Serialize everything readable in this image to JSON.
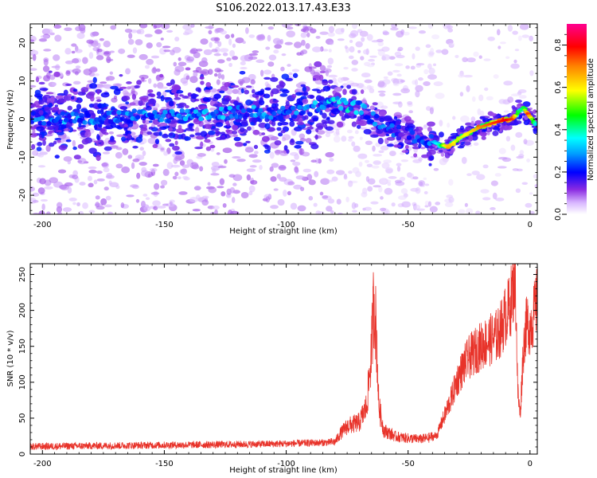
{
  "figure_title": "S106.2022.013.17.43.E33",
  "chart_data": [
    {
      "type": "heatmap",
      "title": "S106.2022.013.17.43.E33",
      "xlabel": "Height of straight line (km)",
      "ylabel": "Frequency (Hz)",
      "xlim": [
        -205,
        3
      ],
      "ylim": [
        -25,
        25
      ],
      "x_ticks": [
        -200,
        -150,
        -100,
        -50,
        0
      ],
      "y_ticks": [
        -20,
        -10,
        0,
        10,
        20
      ],
      "grid": false,
      "colorbar": {
        "label": "Normalized spectral amplitude",
        "range": [
          0,
          0.9
        ],
        "ticks": [
          0.0,
          0.2,
          0.4,
          0.6,
          0.8
        ],
        "colors": [
          "#ffffff",
          "#c8a0ff",
          "#7a00ff",
          "#0000ff",
          "#00ffff",
          "#00ff00",
          "#ffff00",
          "#ff8000",
          "#ff0000",
          "#ff00a0"
        ]
      },
      "ridge": {
        "x": [
          -205,
          -190,
          -175,
          -160,
          -145,
          -130,
          -115,
          -100,
          -90,
          -82,
          -78,
          -70,
          -65,
          -60,
          -55,
          -50,
          -45,
          -40,
          -37,
          -35,
          -33,
          -30,
          -25,
          -20,
          -15,
          -10,
          -7,
          -5,
          -3,
          -1,
          0,
          3
        ],
        "y": [
          0.3,
          0.4,
          0.2,
          0.8,
          1.0,
          1.5,
          1.8,
          1.5,
          2.5,
          4.5,
          4.0,
          3.0,
          0.5,
          -2.0,
          -3.0,
          -4.0,
          -5.0,
          -6.0,
          -6.8,
          -7.0,
          -7.0,
          -5.5,
          -3.5,
          -2.0,
          -1.0,
          -0.2,
          0.0,
          1.5,
          3.0,
          1.5,
          0.5,
          -1.5
        ],
        "amplitude": [
          0.25,
          0.3,
          0.28,
          0.3,
          0.3,
          0.32,
          0.3,
          0.28,
          0.3,
          0.35,
          0.38,
          0.35,
          0.3,
          0.28,
          0.25,
          0.2,
          0.25,
          0.3,
          0.4,
          0.6,
          0.65,
          0.55,
          0.6,
          0.7,
          0.75,
          0.8,
          0.75,
          0.45,
          0.4,
          0.75,
          0.6,
          0.3
        ]
      }
    },
    {
      "type": "line",
      "xlabel": "Height of straight line (km)",
      "ylabel": "SNR (10 * v/v)",
      "xlim": [
        -205,
        3
      ],
      "ylim": [
        0,
        265
      ],
      "x_ticks": [
        -200,
        -150,
        -100,
        -50,
        0
      ],
      "y_ticks": [
        0,
        50,
        100,
        150,
        200,
        250
      ],
      "grid": false,
      "color": "#e8332a",
      "profile": {
        "x": [
          -205,
          -180,
          -150,
          -120,
          -100,
          -90,
          -80,
          -78,
          -75,
          -72,
          -70,
          -67,
          -65,
          -64,
          -63,
          -62,
          -60,
          -55,
          -50,
          -45,
          -42,
          -40,
          -38,
          -37,
          -35,
          -32,
          -30,
          -27,
          -25,
          -22,
          -20,
          -18,
          -15,
          -13,
          -11,
          -10,
          -9,
          -8,
          -7,
          -6,
          -5,
          -4,
          -3,
          -2,
          -1,
          0,
          1,
          2,
          3
        ],
        "y": [
          9,
          10,
          11,
          12,
          13,
          14,
          15,
          25,
          35,
          38,
          40,
          60,
          130,
          200,
          150,
          60,
          30,
          22,
          20,
          19,
          20,
          22,
          25,
          35,
          50,
          75,
          95,
          115,
          125,
          135,
          140,
          145,
          150,
          155,
          170,
          180,
          185,
          195,
          215,
          230,
          80,
          50,
          120,
          160,
          170,
          165,
          175,
          185,
          200
        ]
      }
    }
  ]
}
